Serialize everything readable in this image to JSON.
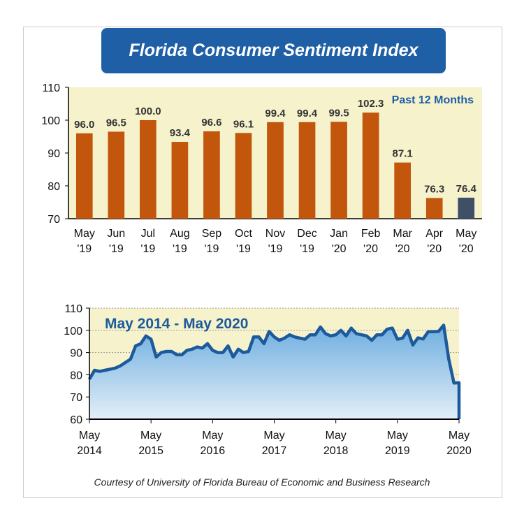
{
  "title": "Florida Consumer Sentiment Index",
  "credit": "Courtesy of University of Florida Bureau of Economic and Business Research",
  "colors": {
    "banner": "#1f5fa6",
    "bar": "#c2560c",
    "bar_latest": "#3e4f66",
    "plot_bg": "#f6f3cc",
    "line": "#1c5a9c",
    "label": "#1f5fa6"
  },
  "chart_data": [
    {
      "type": "bar",
      "annotation": "Past 12 Months",
      "categories": [
        [
          "May",
          "'19"
        ],
        [
          "Jun",
          "'19"
        ],
        [
          "Jul",
          "'19"
        ],
        [
          "Aug",
          "'19"
        ],
        [
          "Sep",
          "'19"
        ],
        [
          "Oct",
          "'19"
        ],
        [
          "Nov",
          "'19"
        ],
        [
          "Dec",
          "'19"
        ],
        [
          "Jan",
          "'20"
        ],
        [
          "Feb",
          "'20"
        ],
        [
          "Mar",
          "'20"
        ],
        [
          "Apr",
          "'20"
        ],
        [
          "May",
          "'20"
        ]
      ],
      "values": [
        96.0,
        96.5,
        100.0,
        93.4,
        96.6,
        96.1,
        99.4,
        99.4,
        99.5,
        102.3,
        87.1,
        76.3,
        76.4
      ],
      "value_labels": [
        "96.0",
        "96.5",
        "100.0",
        "93.4",
        "96.6",
        "96.1",
        "99.4",
        "99.4",
        "99.5",
        "102.3",
        "87.1",
        "76.3",
        "76.4"
      ],
      "ylim": [
        70,
        110
      ],
      "yticks": [
        "70",
        "80",
        "90",
        "100",
        "110"
      ],
      "grid": false
    },
    {
      "type": "area",
      "annotation": "May 2014 - May 2020",
      "x_start": "May 2014",
      "x_end": "May 2020",
      "frequency": "monthly",
      "values": [
        78,
        82,
        81.5,
        82,
        82.5,
        83,
        84,
        85.5,
        87,
        93,
        94,
        97.5,
        96,
        88,
        90,
        90.5,
        90.5,
        89,
        89,
        91,
        91.5,
        92.5,
        92,
        94,
        91,
        90,
        90,
        93,
        88,
        91.5,
        90,
        90.5,
        97,
        97,
        94,
        99.5,
        97,
        95.5,
        96.5,
        98,
        97,
        96.5,
        96,
        98,
        98,
        101.5,
        98.5,
        97.5,
        98,
        100,
        97.5,
        101,
        98.5,
        98,
        97.5,
        95.5,
        98,
        98,
        100.5,
        101,
        96.0,
        96.5,
        100.0,
        93.4,
        96.6,
        96.1,
        99.4,
        99.4,
        99.5,
        102.3,
        87.1,
        76.3,
        76.4
      ],
      "ylim": [
        60,
        110
      ],
      "yticks": [
        "60",
        "70",
        "80",
        "90",
        "100",
        "110"
      ],
      "xticks": [
        [
          "May",
          "2014"
        ],
        [
          "May",
          "2015"
        ],
        [
          "May",
          "2016"
        ],
        [
          "May",
          "2017"
        ],
        [
          "May",
          "2018"
        ],
        [
          "May",
          "2019"
        ],
        [
          "May",
          "2020"
        ]
      ],
      "grid": true
    }
  ]
}
